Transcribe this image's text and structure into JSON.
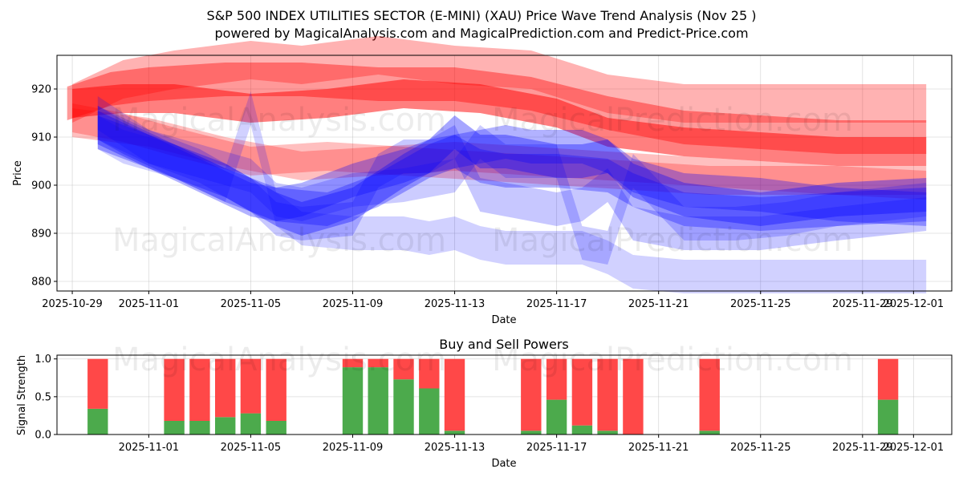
{
  "title": "S&P 500 INDEX UTILITIES SECTOR (E-MINI) (XAU) Price Wave Trend Analysis (Nov 25 )",
  "subtitle": "powered by MagicalAnalysis.com and MagicalPrediction.com and Predict-Price.com",
  "watermarks": [
    "MagicalAnalysis.com",
    "MagicalPrediction.com",
    "MagicalAnalysis.com",
    "MagicalPrediction.com",
    "MagicalAnalysis.com",
    "MagicalPrediction.com"
  ],
  "colors": {
    "red": "#ff0000",
    "blue": "#0000ff",
    "buy": "#4caa4c",
    "sell": "#ff4848"
  },
  "chart_data": [
    {
      "type": "area",
      "name": "price-wave-chart",
      "xlabel": "Date",
      "ylabel": "Price",
      "xlim": [
        -0.6,
        34.5
      ],
      "ylim": [
        878,
        927
      ],
      "grid": true,
      "x_tick_values": [
        0,
        3,
        7,
        11,
        15,
        19,
        23,
        27,
        31,
        33
      ],
      "x_tick_labels": [
        "2025-10-29",
        "2025-11-01",
        "2025-11-05",
        "2025-11-09",
        "2025-11-13",
        "2025-11-17",
        "2025-11-21",
        "2025-11-25",
        "2025-11-29",
        "2025-12-01"
      ],
      "y_ticks": [
        880,
        890,
        900,
        910,
        920
      ],
      "red_bands": [
        {
          "width": 8,
          "alpha": 0.3,
          "x": [
            0,
            2,
            4,
            7,
            9,
            12,
            15,
            18,
            21,
            24,
            27,
            30,
            33.5
          ],
          "y": [
            917,
            922,
            924,
            926,
            925,
            927,
            925,
            924,
            919,
            917,
            917,
            917,
            917
          ]
        },
        {
          "width": 7,
          "alpha": 0.4,
          "x": [
            -0.2,
            1.5,
            3,
            6,
            9,
            12,
            15,
            18,
            21,
            24,
            27,
            30,
            33.5
          ],
          "y": [
            917,
            920,
            921,
            922,
            922,
            921,
            921,
            919,
            915,
            912,
            911,
            910,
            910
          ]
        },
        {
          "width": 6,
          "alpha": 0.5,
          "x": [
            0,
            2,
            4,
            7,
            10,
            13,
            16,
            19,
            21,
            24,
            27,
            30,
            33.5
          ],
          "y": [
            917,
            918,
            918,
            916,
            917,
            919,
            918,
            915,
            911,
            909,
            908,
            907,
            907
          ]
        },
        {
          "width": 6,
          "alpha": 0.25,
          "x": [
            0,
            2,
            4,
            7,
            10,
            13,
            16,
            19,
            22,
            25,
            28,
            31,
            33.5
          ],
          "y": [
            914,
            912,
            909,
            905,
            906,
            905,
            904,
            903,
            902,
            901,
            901,
            901,
            901
          ]
        },
        {
          "width": 6,
          "alpha": 0.25,
          "x": [
            0,
            3,
            6,
            9,
            12,
            15,
            18,
            21,
            24,
            27,
            30,
            33.5
          ],
          "y": [
            913,
            911,
            907,
            904,
            905,
            906,
            905,
            904,
            903,
            902,
            901,
            900
          ]
        }
      ],
      "blue_bands": [
        {
          "width": 7,
          "alpha": 0.18,
          "x": [
            1,
            2,
            4,
            6,
            7,
            8,
            9,
            11,
            13,
            14,
            15,
            16,
            17,
            18,
            20,
            21,
            22,
            24,
            27,
            30,
            33.5
          ],
          "y": [
            911,
            908,
            905,
            900,
            916,
            895,
            891,
            890,
            890,
            889,
            890,
            888,
            887,
            887,
            887,
            885,
            882,
            881,
            881,
            881,
            881
          ]
        },
        {
          "width": 7,
          "alpha": 0.22,
          "x": [
            1,
            3,
            5,
            7,
            8,
            9,
            11,
            12,
            13,
            14,
            15,
            16,
            17,
            18,
            19,
            20,
            21,
            22,
            23,
            24,
            27,
            30,
            33.5
          ],
          "y": [
            913,
            908,
            904,
            898,
            893,
            892,
            893,
            903,
            906,
            906,
            909,
            898,
            897,
            896,
            895,
            896,
            900,
            892,
            891,
            890,
            890,
            892,
            894
          ]
        },
        {
          "width": 7,
          "alpha": 0.2,
          "x": [
            1,
            3,
            5,
            7,
            8,
            9,
            11,
            13,
            15,
            16,
            17,
            18,
            19,
            20,
            21,
            22,
            24,
            26,
            28,
            30,
            33.5
          ],
          "y": [
            915,
            908,
            905,
            902,
            897,
            896,
            899,
            900,
            902,
            909,
            905,
            905,
            905,
            888,
            887,
            903,
            892,
            892,
            893,
            895,
            897
          ]
        },
        {
          "width": 7,
          "alpha": 0.35,
          "x": [
            1,
            3,
            5,
            6,
            7,
            8,
            9,
            11,
            13,
            14,
            15,
            16,
            17,
            18,
            19,
            20,
            21,
            22,
            24,
            27,
            30,
            33.5
          ],
          "y": [
            912,
            907,
            903,
            901,
            898,
            895,
            893,
            896,
            903,
            906,
            911,
            907,
            907,
            906,
            905,
            905,
            906,
            901,
            897,
            895,
            897,
            898
          ]
        },
        {
          "width": 7,
          "alpha": 0.3,
          "x": [
            1,
            2,
            4,
            6,
            8,
            10,
            12,
            14,
            15,
            16,
            17,
            19,
            21,
            22,
            24,
            27,
            30,
            33.5
          ],
          "y": [
            913,
            910,
            905,
            900,
            896,
            895,
            899,
            905,
            907,
            904,
            903,
            903,
            902,
            899,
            895,
            894,
            895,
            896
          ]
        },
        {
          "width": 7,
          "alpha": 0.3,
          "x": [
            1,
            3,
            5,
            7,
            8,
            9,
            11,
            13,
            14,
            15,
            16,
            17,
            18,
            19,
            20,
            21,
            22,
            24,
            27,
            30,
            33.5
          ],
          "y": [
            911,
            907,
            902,
            897,
            896,
            897,
            901,
            904,
            906,
            907,
            908,
            909,
            908,
            908,
            908,
            906,
            902,
            899,
            898,
            896,
            895
          ]
        }
      ]
    },
    {
      "type": "bar",
      "name": "buy-sell-powers-chart",
      "title": "Buy and Sell Powers",
      "xlabel": "Date",
      "ylabel": "Signal Strength",
      "xlim": [
        -0.6,
        34.5
      ],
      "ylim": [
        0,
        1.05
      ],
      "grid": true,
      "x_tick_values": [
        3,
        7,
        11,
        15,
        19,
        23,
        27,
        31,
        33
      ],
      "x_tick_labels": [
        "2025-11-01",
        "2025-11-05",
        "2025-11-09",
        "2025-11-13",
        "2025-11-17",
        "2025-11-21",
        "2025-11-25",
        "2025-11-29",
        "2025-12-01"
      ],
      "y_ticks": [
        0.0,
        0.5,
        1.0
      ],
      "y_tick_labels": [
        "0.0",
        "0.5",
        "1.0"
      ],
      "categories": [
        1,
        4,
        5,
        6,
        7,
        8,
        11,
        12,
        13,
        14,
        15,
        18,
        19,
        20,
        21,
        22,
        25,
        32
      ],
      "series": [
        {
          "name": "Buy",
          "values": [
            0.34,
            0.18,
            0.18,
            0.23,
            0.28,
            0.18,
            0.89,
            0.89,
            0.73,
            0.61,
            0.05,
            0.05,
            0.46,
            0.12,
            0.05,
            0.0,
            0.05,
            0.46
          ]
        },
        {
          "name": "Sell",
          "values": [
            0.66,
            0.82,
            0.82,
            0.77,
            0.72,
            0.82,
            0.11,
            0.11,
            0.27,
            0.39,
            0.95,
            0.95,
            0.54,
            0.88,
            0.95,
            1.0,
            0.95,
            0.54
          ]
        }
      ]
    }
  ]
}
